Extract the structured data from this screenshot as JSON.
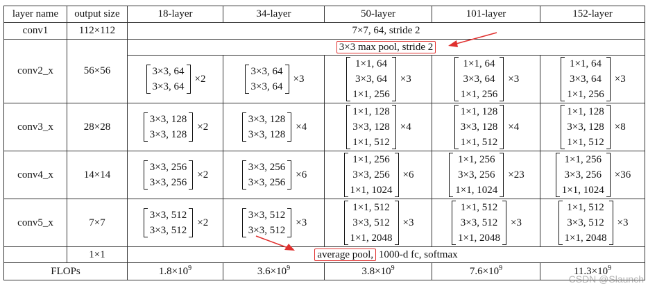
{
  "header": [
    "layer name",
    "output size",
    "18-layer",
    "34-layer",
    "50-layer",
    "101-layer",
    "152-layer"
  ],
  "conv1": {
    "name": "conv1",
    "size": "112×112",
    "desc": "7×7, 64, stride 2"
  },
  "pool": {
    "desc": "3×3 max pool, stride 2"
  },
  "stages": [
    {
      "name": "conv2_x",
      "size": "56×56",
      "cells": [
        {
          "lines": [
            "3×3, 64",
            "3×3, 64"
          ],
          "mult": "×2"
        },
        {
          "lines": [
            "3×3, 64",
            "3×3, 64"
          ],
          "mult": "×3"
        },
        {
          "lines": [
            "1×1, 64",
            "3×3, 64",
            "1×1, 256"
          ],
          "mult": "×3"
        },
        {
          "lines": [
            "1×1, 64",
            "3×3, 64",
            "1×1, 256"
          ],
          "mult": "×3"
        },
        {
          "lines": [
            "1×1, 64",
            "3×3, 64",
            "1×1, 256"
          ],
          "mult": "×3"
        }
      ]
    },
    {
      "name": "conv3_x",
      "size": "28×28",
      "cells": [
        {
          "lines": [
            "3×3, 128",
            "3×3, 128"
          ],
          "mult": "×2"
        },
        {
          "lines": [
            "3×3, 128",
            "3×3, 128"
          ],
          "mult": "×4"
        },
        {
          "lines": [
            "1×1, 128",
            "3×3, 128",
            "1×1, 512"
          ],
          "mult": "×4"
        },
        {
          "lines": [
            "1×1, 128",
            "3×3, 128",
            "1×1, 512"
          ],
          "mult": "×4"
        },
        {
          "lines": [
            "1×1, 128",
            "3×3, 128",
            "1×1, 512"
          ],
          "mult": "×8"
        }
      ]
    },
    {
      "name": "conv4_x",
      "size": "14×14",
      "cells": [
        {
          "lines": [
            "3×3, 256",
            "3×3, 256"
          ],
          "mult": "×2"
        },
        {
          "lines": [
            "3×3, 256",
            "3×3, 256"
          ],
          "mult": "×6"
        },
        {
          "lines": [
            "1×1, 256",
            "3×3, 256",
            "1×1, 1024"
          ],
          "mult": "×6"
        },
        {
          "lines": [
            "1×1, 256",
            "3×3, 256",
            "1×1, 1024"
          ],
          "mult": "×23"
        },
        {
          "lines": [
            "1×1, 256",
            "3×3, 256",
            "1×1, 1024"
          ],
          "mult": "×36"
        }
      ]
    },
    {
      "name": "conv5_x",
      "size": "7×7",
      "cells": [
        {
          "lines": [
            "3×3, 512",
            "3×3, 512"
          ],
          "mult": "×2"
        },
        {
          "lines": [
            "3×3, 512",
            "3×3, 512"
          ],
          "mult": "×3"
        },
        {
          "lines": [
            "1×1, 512",
            "3×3, 512",
            "1×1, 2048"
          ],
          "mult": "×3"
        },
        {
          "lines": [
            "1×1, 512",
            "3×3, 512",
            "1×1, 2048"
          ],
          "mult": "×3"
        },
        {
          "lines": [
            "1×1, 512",
            "3×3, 512",
            "1×1, 2048"
          ],
          "mult": "×3"
        }
      ]
    }
  ],
  "final": {
    "size": "1×1",
    "highlight": "average pool,",
    "rest": " 1000-d fc, softmax"
  },
  "flops": {
    "label": "FLOPs",
    "values": [
      {
        "mant": "1.8×10",
        "exp": "9"
      },
      {
        "mant": "3.6×10",
        "exp": "9"
      },
      {
        "mant": "3.8×10",
        "exp": "9"
      },
      {
        "mant": "7.6×10",
        "exp": "9"
      },
      {
        "mant": "11.3×10",
        "exp": "9"
      }
    ]
  },
  "watermark": "CSDN @Slaunch",
  "annotation_color": "#e0302e"
}
